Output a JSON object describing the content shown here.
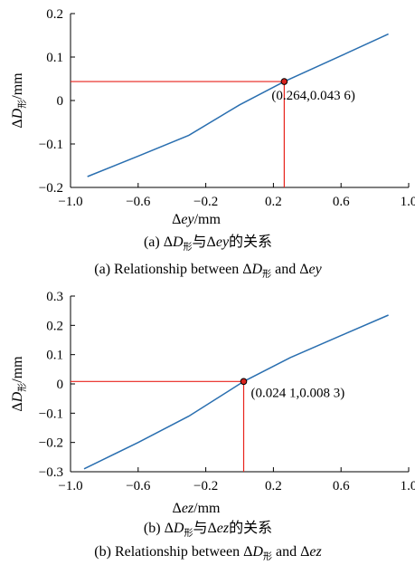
{
  "colors": {
    "series": "#2a6fb0",
    "guide": "#e8221b",
    "marker_fill": "#d9231d"
  },
  "chart_data": [
    {
      "type": "line",
      "xlim": [
        -1.0,
        1.0
      ],
      "ylim": [
        -0.2,
        0.2
      ],
      "xticks": [
        -1.0,
        -0.6,
        -0.2,
        0.2,
        0.6,
        1.0
      ],
      "xtick_labels": [
        "−1.0",
        "−0.6",
        "−0.2",
        "0.2",
        "0.6",
        "1.0"
      ],
      "yticks": [
        -0.2,
        -0.1,
        0,
        0.1,
        0.2
      ],
      "ytick_labels": [
        "−0.2",
        "−0.1",
        "0",
        "0.1",
        "0.2"
      ],
      "xlabel": {
        "delta": "Δ",
        "var": "ey",
        "unit": "/mm"
      },
      "ylabel": {
        "delta": "Δ",
        "var": "D",
        "sub": "形",
        "unit": "/mm"
      },
      "series": [
        {
          "x": [
            -0.9,
            -0.6,
            -0.3,
            0.0,
            0.264,
            0.6,
            0.88
          ],
          "y": [
            -0.175,
            -0.128,
            -0.08,
            -0.01,
            0.0436,
            0.103,
            0.153
          ]
        }
      ],
      "highlight": {
        "x": 0.264,
        "y": 0.0436,
        "label": "(0.264,0.043 6)"
      },
      "caption_cn": {
        "prefix": "(a) Δ",
        "d": "D",
        "sub": "形",
        "mid": "与Δ",
        "var": "ey",
        "suffix": "的关系"
      },
      "caption_en": {
        "prefix": "(a) Relationship between Δ",
        "d": "D",
        "sub": "形",
        "mid": " and Δ",
        "var": "ey"
      }
    },
    {
      "type": "line",
      "xlim": [
        -1.0,
        1.0
      ],
      "ylim": [
        -0.3,
        0.3
      ],
      "xticks": [
        -1.0,
        -0.6,
        -0.2,
        0.2,
        0.6,
        1.0
      ],
      "xtick_labels": [
        "−1.0",
        "−0.6",
        "−0.2",
        "0.2",
        "0.6",
        "1.0"
      ],
      "yticks": [
        -0.3,
        -0.2,
        -0.1,
        0,
        0.1,
        0.2,
        0.3
      ],
      "ytick_labels": [
        "−0.3",
        "−0.2",
        "−0.1",
        "0",
        "0.1",
        "0.2",
        "0.3"
      ],
      "xlabel": {
        "delta": "Δ",
        "var": "ez",
        "unit": "/mm"
      },
      "ylabel": {
        "delta": "Δ",
        "var": "D",
        "sub": "形",
        "unit": "/mm"
      },
      "series": [
        {
          "x": [
            -0.92,
            -0.6,
            -0.3,
            0.0241,
            0.3,
            0.6,
            0.88
          ],
          "y": [
            -0.29,
            -0.2,
            -0.11,
            0.0083,
            0.09,
            0.165,
            0.235
          ]
        }
      ],
      "highlight": {
        "x": 0.0241,
        "y": 0.0083,
        "label": "(0.024 1,0.008 3)"
      },
      "caption_cn": {
        "prefix": "(b) Δ",
        "d": "D",
        "sub": "形",
        "mid": "与Δ",
        "var": "ez",
        "suffix": "的关系"
      },
      "caption_en": {
        "prefix": "(b) Relationship between Δ",
        "d": "D",
        "sub": "形",
        "mid": " and Δ",
        "var": "ez"
      }
    }
  ]
}
